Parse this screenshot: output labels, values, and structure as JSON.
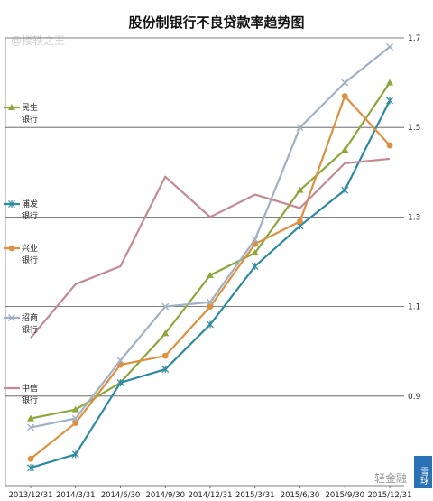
{
  "watermarks": {
    "top_left": "@楼轶之王",
    "bottom_right": "轻金融",
    "corner_badge": "雪球"
  },
  "chart_data": {
    "type": "line",
    "title": "股份制银行不良贷款率趋势图",
    "xlabel": "",
    "ylabel": "",
    "ylim": [
      0.7,
      1.7
    ],
    "yticks": [
      0.9,
      1.1,
      1.3,
      1.5,
      1.7
    ],
    "ytick_labels": [
      "0.9",
      "1.1",
      "1.3",
      "1.5",
      "1.7"
    ],
    "grid": "horizontal",
    "legend_position": "left",
    "categories": [
      "2013/12/31",
      "2014/3/31",
      "2014/6/30",
      "2014/9/30",
      "2014/12/31",
      "2015/3/31",
      "2015/6/30",
      "2015/9/30",
      "2015/12/31"
    ],
    "series": [
      {
        "name": "民生银行",
        "color": "#8ca83c",
        "marker": "triangle",
        "values": [
          0.85,
          0.87,
          0.93,
          1.04,
          1.17,
          1.22,
          1.36,
          1.45,
          1.6
        ]
      },
      {
        "name": "浦发银行",
        "color": "#2e8aa0",
        "marker": "star",
        "values": [
          0.74,
          0.77,
          0.93,
          0.96,
          1.06,
          1.19,
          1.28,
          1.36,
          1.56
        ]
      },
      {
        "name": "兴业银行",
        "color": "#dd9040",
        "marker": "circle",
        "values": [
          0.76,
          0.84,
          0.97,
          0.99,
          1.1,
          1.24,
          1.29,
          1.57,
          1.46
        ]
      },
      {
        "name": "招商银行",
        "color": "#a2b0c4",
        "marker": "x",
        "values": [
          0.83,
          0.85,
          0.98,
          1.1,
          1.11,
          1.25,
          1.5,
          1.6,
          1.68
        ]
      },
      {
        "name": "中信银行",
        "color": "#c48a92",
        "marker": "none",
        "values": [
          1.03,
          1.15,
          1.19,
          1.39,
          1.3,
          1.35,
          1.32,
          1.42,
          1.43
        ]
      }
    ]
  }
}
